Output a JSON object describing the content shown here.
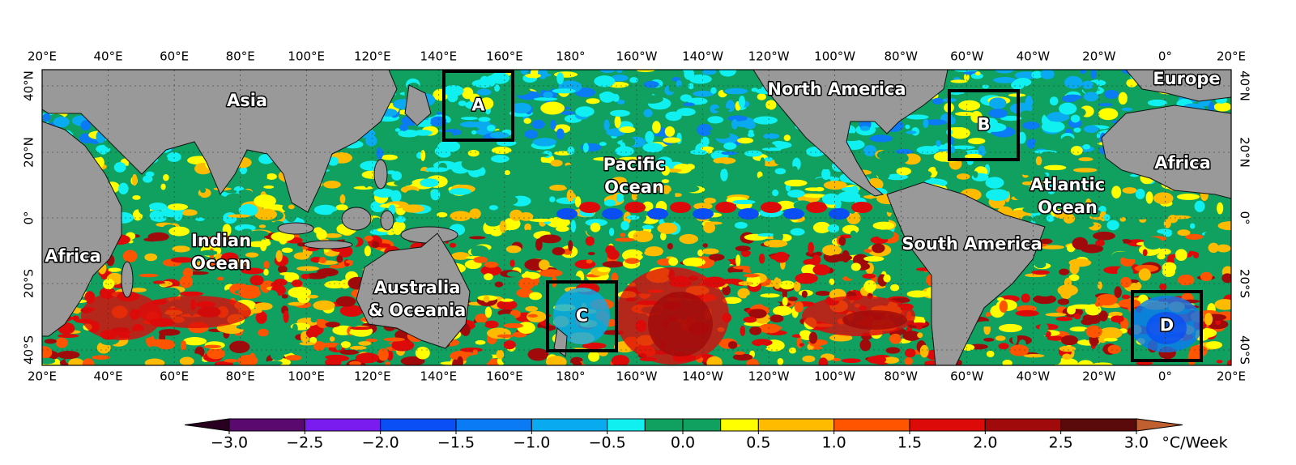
{
  "map": {
    "lon_labels": [
      "20°E",
      "40°E",
      "60°E",
      "80°E",
      "100°E",
      "120°E",
      "140°E",
      "160°E",
      "180°",
      "160°W",
      "140°W",
      "120°W",
      "100°W",
      "80°W",
      "60°W",
      "40°W",
      "20°W",
      "0°",
      "20°E"
    ],
    "lat_labels": [
      "40°N",
      "20°N",
      "0°",
      "20°S",
      "40°S"
    ],
    "regions": [
      [
        "Asia"
      ],
      [
        "North America"
      ],
      [
        "Europe"
      ],
      [
        "Pacific",
        "Ocean"
      ],
      [
        "Africa"
      ],
      [
        "Indian",
        "Ocean"
      ],
      [
        "Australia",
        "& Oceania"
      ],
      [
        "South America"
      ],
      [
        "Atlantic",
        "Ocean"
      ],
      [
        "Africa"
      ]
    ],
    "boxes": [
      "A",
      "B",
      "C",
      "D"
    ]
  },
  "colorbar": {
    "bounds": [
      -3,
      -2.5,
      -2,
      -1.5,
      -1,
      -0.5,
      -0.25,
      0,
      0.25,
      0.5,
      1,
      1.5,
      2,
      2.5,
      3
    ],
    "colors": [
      "#5a0a6e",
      "#7a1bf0",
      "#0a4ef5",
      "#0a7af5",
      "#0aaaf0",
      "#10f0f0",
      "#10a060",
      "#10a060",
      "#ffff00",
      "#ffbb00",
      "#ff5500",
      "#dd0a0a",
      "#a00a0a",
      "#5a0a0a"
    ],
    "under_color": "#2a0020",
    "over_color": "#c06030",
    "ticks": [
      {
        "value": -3,
        "label": "−3.0"
      },
      {
        "value": -2.5,
        "label": "−2.5"
      },
      {
        "value": -2,
        "label": "−2.0"
      },
      {
        "value": -1.5,
        "label": "−1.5"
      },
      {
        "value": -1,
        "label": "−1.0"
      },
      {
        "value": -0.5,
        "label": "−0.5"
      },
      {
        "value": 0,
        "label": "0.0"
      },
      {
        "value": 0.5,
        "label": "0.5"
      },
      {
        "value": 1,
        "label": "1.0"
      },
      {
        "value": 1.5,
        "label": "1.5"
      },
      {
        "value": 2,
        "label": "2.0"
      },
      {
        "value": 2.5,
        "label": "2.5"
      },
      {
        "value": 3,
        "label": "3.0"
      }
    ],
    "unit": "°C/Week"
  }
}
